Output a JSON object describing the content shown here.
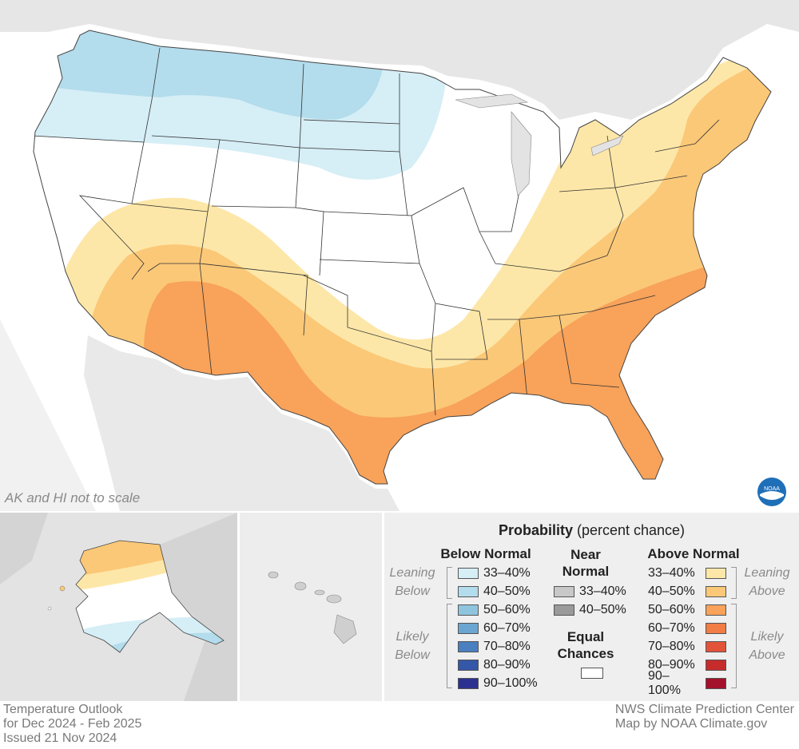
{
  "map": {
    "scale_note": "AK and HI not to scale",
    "logo_text": "NOAA"
  },
  "legend": {
    "title_bold": "Probability",
    "title_rest": " (percent chance)",
    "below_header": "Below Normal",
    "near_header_line1": "Near",
    "near_header_line2": "Normal",
    "above_header": "Above Normal",
    "below_rows": [
      {
        "label": "33–40%",
        "color": "#d6eef6"
      },
      {
        "label": "40–50%",
        "color": "#b3dcec"
      },
      {
        "label": "50–60%",
        "color": "#8fc4df"
      },
      {
        "label": "60–70%",
        "color": "#6aa6d1"
      },
      {
        "label": "70–80%",
        "color": "#4a7fc0"
      },
      {
        "label": "80–90%",
        "color": "#3457a8"
      },
      {
        "label": "90–100%",
        "color": "#2b3191"
      }
    ],
    "near_rows": [
      {
        "label": "33–40%",
        "color": "#c8c8c8"
      },
      {
        "label": "40–50%",
        "color": "#9a9a9a"
      }
    ],
    "above_rows": [
      {
        "label": "33–40%",
        "color": "#fde7a8"
      },
      {
        "label": "40–50%",
        "color": "#fbc878"
      },
      {
        "label": "50–60%",
        "color": "#f8a25a"
      },
      {
        "label": "60–70%",
        "color": "#f17c45"
      },
      {
        "label": "70–80%",
        "color": "#e2533a"
      },
      {
        "label": "80–90%",
        "color": "#c62c2c"
      },
      {
        "label": "90–100%",
        "color": "#a3112a"
      }
    ],
    "equal_line1": "Equal",
    "equal_line2": "Chances",
    "equal_color": "#ffffff",
    "leaning_below": [
      "Leaning",
      "Below"
    ],
    "likely_below": [
      "Likely",
      "Below"
    ],
    "leaning_above": [
      "Leaning",
      "Above"
    ],
    "likely_above": [
      "Likely",
      "Above"
    ]
  },
  "footer": {
    "title": "Temperature Outlook",
    "period": "for Dec 2024 - Feb 2025",
    "issued": "Issued 21 Nov 2024",
    "source": "NWS Climate Prediction Center",
    "credit": "Map by NOAA Climate.gov"
  }
}
